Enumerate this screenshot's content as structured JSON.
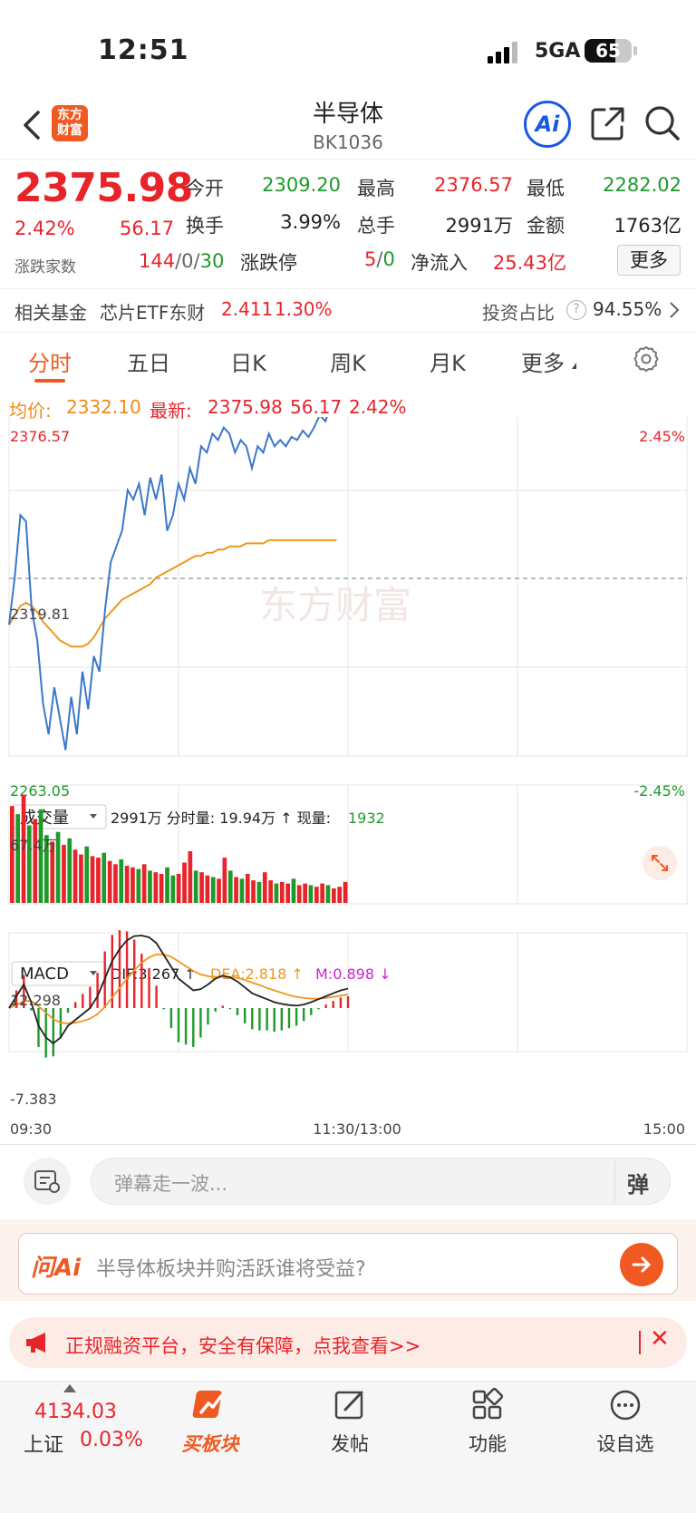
{
  "status_bar": {
    "time": "12:51",
    "network": "5GA",
    "battery": "65",
    "battery_level": 0.65
  },
  "nav": {
    "logo_text_1": "东方",
    "logo_text_2": "财富",
    "title": "半导体",
    "code": "BK1036",
    "ai_label": "Ai"
  },
  "quote": {
    "price": "2375.98",
    "change_pct": "2.42%",
    "change": "56.17",
    "open_label": "今开",
    "open": "2309.20",
    "high_label": "最高",
    "high": "2376.57",
    "low_label": "最低",
    "low": "2282.02",
    "turnover_label": "换手",
    "turnover": "3.99%",
    "volume_label": "总手",
    "volume": "2991万",
    "amount_label": "金额",
    "amount": "1763亿",
    "breadth_label": "涨跌家数",
    "breadth_up": "144",
    "breadth_flat": "0",
    "breadth_down": "30",
    "breadth_sep": "/",
    "limit_label": "涨跌停",
    "limit_up": "5",
    "limit_down": "0",
    "netflow_label": "净流入",
    "netflow": "25.43亿",
    "more_button": "更多"
  },
  "fund": {
    "label": "相关基金",
    "name": "芯片ETF东财",
    "price": "2.411",
    "pct": "1.30%",
    "ratio_label": "投资占比",
    "ratio": "94.55%"
  },
  "tabs": [
    "分时",
    "五日",
    "日K",
    "周K",
    "月K",
    "更多"
  ],
  "chart_info": {
    "avg_label": "均价:",
    "avg": "2332.10",
    "latest_label": "最新:",
    "latest": "2375.98",
    "latest_change": "56.17",
    "latest_pct": "2.42%"
  },
  "chart_labels": {
    "y_top": "2376.57",
    "y_mid": "2319.81",
    "y_bottom": "2263.05",
    "pct_top": "2.45%",
    "pct_bottom": "-2.45%",
    "watermark": "东方财富",
    "vol_selector": "成交量",
    "vol_info": "2991万 分时量: 19.94万 ↑ 现量:",
    "vol_now": "1932",
    "vol_max": "67.4万",
    "macd_selector": "MACD",
    "dif": "DIF:3.267 ↑",
    "dea": "DEA:2.818 ↑",
    "m": "M:0.898 ↓",
    "macd_top": "12.298",
    "macd_bottom": "-7.383",
    "time_start": "09:30",
    "time_mid": "11:30/13:00",
    "time_end": "15:00"
  },
  "chart_data": {
    "type": "line",
    "ylim": [
      2263.05,
      2376.57
    ],
    "reference_price": 2319.81,
    "price": [
      2305,
      2320,
      2340,
      2338,
      2310,
      2300,
      2280,
      2270,
      2285,
      2275,
      2265,
      2282,
      2270,
      2290,
      2278,
      2295,
      2290,
      2310,
      2325,
      2330,
      2335,
      2348,
      2345,
      2350,
      2340,
      2352,
      2345,
      2353,
      2335,
      2340,
      2350,
      2345,
      2355,
      2350,
      2362,
      2360,
      2366,
      2364,
      2368,
      2366,
      2360,
      2364,
      2362,
      2355,
      2362,
      2360,
      2366,
      2362,
      2364,
      2362,
      2365,
      2364,
      2367,
      2365,
      2368,
      2372,
      2370,
      2375,
      2376
    ],
    "avg": [
      2305,
      2308,
      2311,
      2312,
      2311,
      2309,
      2306,
      2304,
      2302,
      2300,
      2299,
      2298,
      2298,
      2298,
      2299,
      2301,
      2304,
      2307,
      2309,
      2311,
      2313,
      2314,
      2315,
      2316,
      2317,
      2318,
      2320,
      2321,
      2322,
      2323,
      2324,
      2325,
      2326,
      2327,
      2327,
      2328,
      2328,
      2329,
      2329,
      2330,
      2330,
      2330,
      2331,
      2331,
      2331,
      2331,
      2332,
      2332,
      2332,
      2332,
      2332,
      2332,
      2332,
      2332,
      2332,
      2332,
      2332,
      2332,
      2332
    ],
    "volume_max": 67.4,
    "volume": [
      60,
      55,
      67,
      48,
      52,
      58,
      42,
      38,
      44,
      36,
      40,
      33,
      30,
      35,
      29,
      28,
      31,
      26,
      24,
      27,
      23,
      22,
      21,
      24,
      20,
      19,
      18,
      22,
      17,
      18,
      25,
      32,
      20,
      19,
      17,
      16,
      15,
      28,
      20,
      16,
      15,
      18,
      14,
      13,
      19,
      14,
      12,
      13,
      12,
      15,
      11,
      12,
      11,
      10,
      12,
      11,
      9,
      10,
      13
    ],
    "volume_up": [
      1,
      0,
      1,
      0,
      1,
      0,
      0,
      1,
      0,
      1,
      0,
      1,
      1,
      0,
      1,
      1,
      0,
      1,
      1,
      0,
      1,
      1,
      0,
      1,
      0,
      1,
      1,
      0,
      0,
      1,
      1,
      1,
      0,
      1,
      1,
      0,
      1,
      1,
      0,
      1,
      0,
      1,
      1,
      0,
      1,
      1,
      0,
      1,
      1,
      0,
      1,
      1,
      0,
      1,
      1,
      0,
      1,
      1,
      1
    ],
    "macd_range": [
      -7.383,
      12.298
    ],
    "dif": [
      0,
      2,
      4,
      1,
      -3,
      -5,
      -6,
      -5,
      -3,
      -2,
      -1,
      0,
      2,
      5,
      8,
      10,
      11.5,
      12.2,
      12.3,
      12,
      11,
      9,
      7,
      5,
      4,
      3,
      3.2,
      4,
      5,
      5.5,
      5.2,
      4.5,
      3.5,
      2.5,
      2,
      1.5,
      1,
      0.7,
      0.5,
      0.4,
      0.6,
      1,
      1.5,
      2,
      2.5,
      3,
      3.3
    ],
    "dea": [
      0,
      0.5,
      1.2,
      1.2,
      0.3,
      -0.8,
      -1.9,
      -2.5,
      -2.6,
      -2.5,
      -2.2,
      -1.8,
      -1,
      0.2,
      1.8,
      3.4,
      5,
      6.4,
      7.7,
      8.6,
      9.1,
      9.1,
      8.7,
      7.9,
      7.1,
      6.3,
      5.7,
      5.4,
      5.3,
      5.3,
      5.3,
      5.1,
      4.8,
      4.3,
      3.9,
      3.4,
      3,
      2.6,
      2.2,
      1.9,
      1.7,
      1.6,
      1.6,
      1.7,
      1.9,
      2.1,
      2.3
    ],
    "macd_bars": [
      0,
      3,
      5.6,
      -0.4,
      -6.6,
      -8.4,
      -8.2,
      -5,
      -0.8,
      1,
      2.4,
      3.6,
      6,
      9.6,
      12.4,
      13.2,
      13,
      11.6,
      9.2,
      6.8,
      3.8,
      -0.2,
      -3.4,
      -5.8,
      -6.2,
      -6.6,
      -5,
      -2.8,
      -0.6,
      0.4,
      -0.2,
      -1.2,
      -2.6,
      -3.6,
      -3.8,
      -3.8,
      -4,
      -3.8,
      -3.4,
      -3,
      -2.2,
      -1.2,
      -0.2,
      0.6,
      1.2,
      1.8,
      2
    ]
  },
  "danmu": {
    "placeholder": "弹幕走一波...",
    "toggle": "弹"
  },
  "ask_ai": {
    "logo": "问Ai",
    "question": "半导体板块并购活跃谁将受益?"
  },
  "ad": {
    "text": "正规融资平台，安全有保障，点我查看>>",
    "close": "✕"
  },
  "bottom_nav": {
    "index_value": "4134.03",
    "index_name": "上证",
    "index_pct": "0.03%",
    "buy_label": "买板块",
    "post_label": "发帖",
    "func_label": "功能",
    "watch_label": "设自选"
  },
  "colors": {
    "up": "#e8242b",
    "down": "#1e9a2a",
    "price_line": "#3a78c9",
    "avg_line": "#f0961e",
    "accent": "#f05a22"
  }
}
